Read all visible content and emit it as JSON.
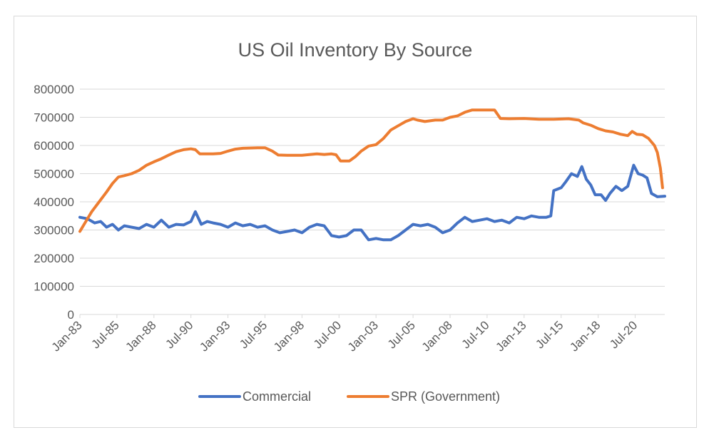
{
  "chart_data": {
    "type": "line",
    "title": "US Oil Inventory By Source",
    "xlabel": "",
    "ylabel": "",
    "ylim": [
      0,
      800000
    ],
    "yticks": [
      0,
      100000,
      200000,
      300000,
      400000,
      500000,
      600000,
      700000,
      800000
    ],
    "xlim": [
      1983.0,
      2022.5
    ],
    "xticks": [
      {
        "label": "Jan-83",
        "x": 1983.0
      },
      {
        "label": "Jul-85",
        "x": 1985.5
      },
      {
        "label": "Jan-88",
        "x": 1988.0
      },
      {
        "label": "Jul-90",
        "x": 1990.5
      },
      {
        "label": "Jan-93",
        "x": 1993.0
      },
      {
        "label": "Jul-95",
        "x": 1995.5
      },
      {
        "label": "Jan-98",
        "x": 1998.0
      },
      {
        "label": "Jul-00",
        "x": 2000.5
      },
      {
        "label": "Jan-03",
        "x": 2003.0
      },
      {
        "label": "Jul-05",
        "x": 2005.5
      },
      {
        "label": "Jan-08",
        "x": 2008.0
      },
      {
        "label": "Jul-10",
        "x": 2010.5
      },
      {
        "label": "Jan-13",
        "x": 2013.0
      },
      {
        "label": "Jul-15",
        "x": 2015.5
      },
      {
        "label": "Jan-18",
        "x": 2018.0
      },
      {
        "label": "Jul-20",
        "x": 2020.5
      }
    ],
    "grid": "horizontal",
    "legend": "bottom",
    "colors": {
      "commercial": "#4472c4",
      "spr": "#ed7d31",
      "grid": "#d9d9d9",
      "text": "#595959"
    },
    "series": [
      {
        "name": "Commercial",
        "color": "#4472c4",
        "points": [
          [
            1983.0,
            345000
          ],
          [
            1983.5,
            340000
          ],
          [
            1984.0,
            325000
          ],
          [
            1984.4,
            330000
          ],
          [
            1984.8,
            310000
          ],
          [
            1985.2,
            320000
          ],
          [
            1985.6,
            300000
          ],
          [
            1986.0,
            315000
          ],
          [
            1986.5,
            310000
          ],
          [
            1987.0,
            305000
          ],
          [
            1987.5,
            320000
          ],
          [
            1988.0,
            310000
          ],
          [
            1988.5,
            335000
          ],
          [
            1989.0,
            310000
          ],
          [
            1989.5,
            320000
          ],
          [
            1990.0,
            318000
          ],
          [
            1990.5,
            330000
          ],
          [
            1990.8,
            365000
          ],
          [
            1991.2,
            320000
          ],
          [
            1991.6,
            330000
          ],
          [
            1992.0,
            325000
          ],
          [
            1992.5,
            320000
          ],
          [
            1993.0,
            310000
          ],
          [
            1993.5,
            325000
          ],
          [
            1994.0,
            315000
          ],
          [
            1994.5,
            320000
          ],
          [
            1995.0,
            310000
          ],
          [
            1995.5,
            315000
          ],
          [
            1996.0,
            300000
          ],
          [
            1996.5,
            290000
          ],
          [
            1997.0,
            295000
          ],
          [
            1997.5,
            300000
          ],
          [
            1998.0,
            290000
          ],
          [
            1998.5,
            310000
          ],
          [
            1999.0,
            320000
          ],
          [
            1999.5,
            315000
          ],
          [
            2000.0,
            280000
          ],
          [
            2000.5,
            275000
          ],
          [
            2001.0,
            280000
          ],
          [
            2001.5,
            300000
          ],
          [
            2002.0,
            300000
          ],
          [
            2002.5,
            265000
          ],
          [
            2003.0,
            270000
          ],
          [
            2003.5,
            265000
          ],
          [
            2004.0,
            265000
          ],
          [
            2004.5,
            280000
          ],
          [
            2005.0,
            300000
          ],
          [
            2005.5,
            320000
          ],
          [
            2006.0,
            315000
          ],
          [
            2006.5,
            320000
          ],
          [
            2007.0,
            310000
          ],
          [
            2007.5,
            290000
          ],
          [
            2008.0,
            300000
          ],
          [
            2008.5,
            325000
          ],
          [
            2009.0,
            345000
          ],
          [
            2009.5,
            330000
          ],
          [
            2010.0,
            335000
          ],
          [
            2010.5,
            340000
          ],
          [
            2011.0,
            330000
          ],
          [
            2011.5,
            335000
          ],
          [
            2012.0,
            325000
          ],
          [
            2012.5,
            345000
          ],
          [
            2013.0,
            340000
          ],
          [
            2013.5,
            350000
          ],
          [
            2014.0,
            345000
          ],
          [
            2014.5,
            345000
          ],
          [
            2014.8,
            350000
          ],
          [
            2015.0,
            440000
          ],
          [
            2015.5,
            450000
          ],
          [
            2015.8,
            470000
          ],
          [
            2016.2,
            500000
          ],
          [
            2016.6,
            490000
          ],
          [
            2016.9,
            525000
          ],
          [
            2017.2,
            480000
          ],
          [
            2017.5,
            460000
          ],
          [
            2017.8,
            425000
          ],
          [
            2018.2,
            425000
          ],
          [
            2018.5,
            405000
          ],
          [
            2018.8,
            430000
          ],
          [
            2019.2,
            455000
          ],
          [
            2019.6,
            440000
          ],
          [
            2020.0,
            455000
          ],
          [
            2020.4,
            530000
          ],
          [
            2020.7,
            500000
          ],
          [
            2021.0,
            495000
          ],
          [
            2021.3,
            485000
          ],
          [
            2021.6,
            430000
          ],
          [
            2022.0,
            418000
          ],
          [
            2022.5,
            420000
          ]
        ]
      },
      {
        "name": "SPR (Government)",
        "color": "#ed7d31",
        "points": [
          [
            1983.0,
            295000
          ],
          [
            1983.4,
            330000
          ],
          [
            1983.8,
            365000
          ],
          [
            1984.3,
            400000
          ],
          [
            1984.8,
            435000
          ],
          [
            1985.2,
            465000
          ],
          [
            1985.6,
            488000
          ],
          [
            1986.0,
            493000
          ],
          [
            1986.5,
            500000
          ],
          [
            1987.0,
            512000
          ],
          [
            1987.5,
            530000
          ],
          [
            1988.0,
            542000
          ],
          [
            1988.5,
            553000
          ],
          [
            1989.0,
            566000
          ],
          [
            1989.5,
            578000
          ],
          [
            1990.0,
            585000
          ],
          [
            1990.5,
            588000
          ],
          [
            1990.8,
            585000
          ],
          [
            1991.1,
            570000
          ],
          [
            1992.0,
            570000
          ],
          [
            1992.5,
            572000
          ],
          [
            1993.0,
            580000
          ],
          [
            1993.5,
            587000
          ],
          [
            1994.0,
            590000
          ],
          [
            1995.0,
            592000
          ],
          [
            1995.5,
            592000
          ],
          [
            1996.0,
            580000
          ],
          [
            1996.4,
            566000
          ],
          [
            1997.0,
            565000
          ],
          [
            1998.0,
            565000
          ],
          [
            1999.0,
            570000
          ],
          [
            1999.5,
            568000
          ],
          [
            2000.0,
            570000
          ],
          [
            2000.3,
            567000
          ],
          [
            2000.6,
            545000
          ],
          [
            2001.2,
            545000
          ],
          [
            2001.6,
            560000
          ],
          [
            2002.0,
            580000
          ],
          [
            2002.5,
            598000
          ],
          [
            2003.0,
            603000
          ],
          [
            2003.5,
            625000
          ],
          [
            2004.0,
            655000
          ],
          [
            2004.5,
            670000
          ],
          [
            2005.0,
            685000
          ],
          [
            2005.5,
            695000
          ],
          [
            2005.8,
            690000
          ],
          [
            2006.3,
            685000
          ],
          [
            2007.0,
            690000
          ],
          [
            2007.5,
            690000
          ],
          [
            2008.0,
            700000
          ],
          [
            2008.5,
            705000
          ],
          [
            2009.0,
            718000
          ],
          [
            2009.5,
            726000
          ],
          [
            2010.0,
            726000
          ],
          [
            2011.0,
            726000
          ],
          [
            2011.4,
            696000
          ],
          [
            2012.0,
            695000
          ],
          [
            2013.0,
            696000
          ],
          [
            2014.0,
            693000
          ],
          [
            2015.0,
            693000
          ],
          [
            2016.0,
            695000
          ],
          [
            2016.7,
            690000
          ],
          [
            2017.0,
            680000
          ],
          [
            2017.5,
            672000
          ],
          [
            2018.0,
            660000
          ],
          [
            2018.5,
            652000
          ],
          [
            2019.0,
            648000
          ],
          [
            2019.5,
            640000
          ],
          [
            2020.0,
            635000
          ],
          [
            2020.3,
            650000
          ],
          [
            2020.6,
            640000
          ],
          [
            2021.0,
            638000
          ],
          [
            2021.4,
            625000
          ],
          [
            2021.8,
            600000
          ],
          [
            2022.0,
            575000
          ],
          [
            2022.2,
            520000
          ],
          [
            2022.35,
            450000
          ]
        ]
      }
    ]
  }
}
